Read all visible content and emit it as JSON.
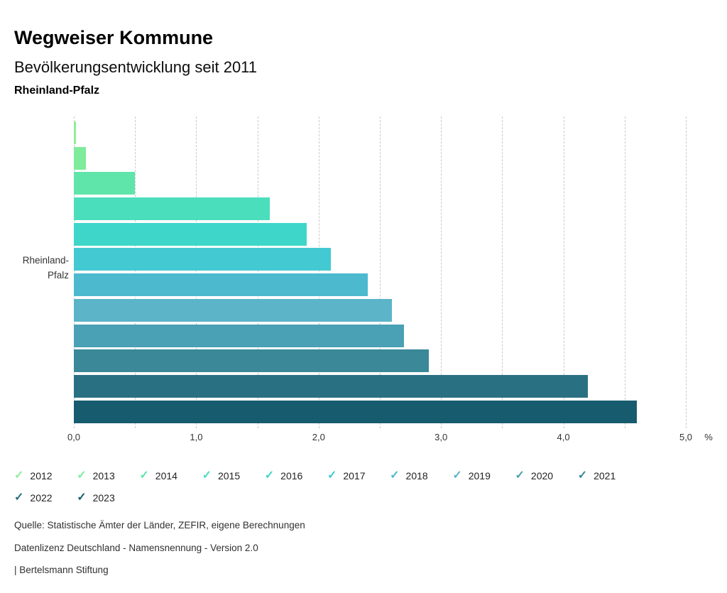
{
  "header": {
    "title": "Wegweiser Kommune",
    "subtitle": "Bevölkerungsentwicklung seit 2011",
    "region": "Rheinland-Pfalz"
  },
  "chart_data": {
    "type": "bar",
    "orientation": "horizontal",
    "title": "Bevölkerungsentwicklung seit 2011",
    "category_axis_label": "Rheinland-Pfalz",
    "unit": "%",
    "xlim": [
      0,
      5
    ],
    "gridline_step": 0.5,
    "grid": true,
    "legend_position": "bottom",
    "legend_icon": "check",
    "x_ticks": [
      {
        "label": "0,0",
        "value": 0
      },
      {
        "label": "1,0",
        "value": 1
      },
      {
        "label": "2,0",
        "value": 2
      },
      {
        "label": "3,0",
        "value": 3
      },
      {
        "label": "4,0",
        "value": 4
      },
      {
        "label": "5,0",
        "value": 5
      }
    ],
    "series": [
      {
        "name": "2012",
        "value": 0.02,
        "color": "#90EE9A"
      },
      {
        "name": "2013",
        "value": 0.1,
        "color": "#7FEB9C"
      },
      {
        "name": "2014",
        "value": 0.5,
        "color": "#5FE5AA"
      },
      {
        "name": "2015",
        "value": 1.6,
        "color": "#4BDEBC"
      },
      {
        "name": "2016",
        "value": 1.9,
        "color": "#3FD6CA"
      },
      {
        "name": "2017",
        "value": 2.1,
        "color": "#42C9D1"
      },
      {
        "name": "2018",
        "value": 2.4,
        "color": "#4CB9CF"
      },
      {
        "name": "2019",
        "value": 2.6,
        "color": "#5BB4C8"
      },
      {
        "name": "2020",
        "value": 2.7,
        "color": "#4AA0B4"
      },
      {
        "name": "2021",
        "value": 2.9,
        "color": "#3A8898"
      },
      {
        "name": "2022",
        "value": 4.2,
        "color": "#297182"
      },
      {
        "name": "2023",
        "value": 4.6,
        "color": "#175C6E"
      }
    ]
  },
  "footer": {
    "source": "Quelle: Statistische Ämter der Länder, ZEFIR, eigene Berechnungen",
    "license": "Datenlizenz Deutschland - Namensnennung - Version 2.0",
    "attribution": "| Bertelsmann Stiftung"
  }
}
